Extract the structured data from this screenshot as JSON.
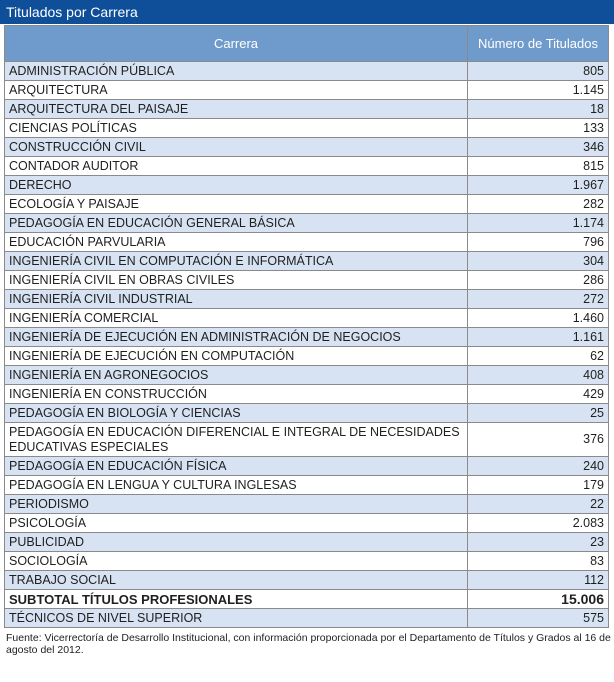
{
  "title": "Titulados por Carrera",
  "header": {
    "career": "Carrera",
    "count": "Número de Titulados"
  },
  "rows": [
    {
      "career": "ADMINISTRACIÓN PÚBLICA",
      "count": "805"
    },
    {
      "career": "ARQUITECTURA",
      "count": "1.145"
    },
    {
      "career": "ARQUITECTURA DEL PAISAJE",
      "count": "18"
    },
    {
      "career": "CIENCIAS POLÍTICAS",
      "count": "133"
    },
    {
      "career": "CONSTRUCCIÓN CIVIL",
      "count": "346"
    },
    {
      "career": "CONTADOR AUDITOR",
      "count": "815"
    },
    {
      "career": "DERECHO",
      "count": "1.967"
    },
    {
      "career": "ECOLOGÍA Y PAISAJE",
      "count": "282"
    },
    {
      "career": "PEDAGOGÍA EN EDUCACIÓN GENERAL BÁSICA",
      "count": "1.174"
    },
    {
      "career": "EDUCACIÓN PARVULARIA",
      "count": "796"
    },
    {
      "career": "INGENIERÍA CIVIL EN COMPUTACIÓN E INFORMÁTICA",
      "count": "304"
    },
    {
      "career": "INGENIERÍA CIVIL EN OBRAS CIVILES",
      "count": "286"
    },
    {
      "career": "INGENIERÍA CIVIL INDUSTRIAL",
      "count": "272"
    },
    {
      "career": "INGENIERÍA COMERCIAL",
      "count": "1.460"
    },
    {
      "career": "INGENIERÍA DE EJECUCIÓN EN ADMINISTRACIÓN DE NEGOCIOS",
      "count": "1.161"
    },
    {
      "career": "INGENIERÍA DE EJECUCIÓN EN COMPUTACIÓN",
      "count": "62"
    },
    {
      "career": "INGENIERÍA EN AGRONEGOCIOS",
      "count": "408"
    },
    {
      "career": "INGENIERÍA EN CONSTRUCCIÓN",
      "count": "429"
    },
    {
      "career": "PEDAGOGÍA EN BIOLOGÍA Y CIENCIAS",
      "count": "25"
    },
    {
      "career": "PEDAGOGÍA EN EDUCACIÓN DIFERENCIAL E INTEGRAL DE NECESIDADES EDUCATIVAS ESPECIALES",
      "count": "376"
    },
    {
      "career": "PEDAGOGÍA EN EDUCACIÓN FÍSICA",
      "count": "240"
    },
    {
      "career": "PEDAGOGÍA EN LENGUA Y CULTURA INGLESAS",
      "count": "179"
    },
    {
      "career": "PERIODISMO",
      "count": "22"
    },
    {
      "career": "PSICOLOGÍA",
      "count": "2.083"
    },
    {
      "career": "PUBLICIDAD",
      "count": "23"
    },
    {
      "career": "SOCIOLOGÍA",
      "count": "83"
    },
    {
      "career": "TRABAJO SOCIAL",
      "count": "112"
    }
  ],
  "subtotal": {
    "label": "SUBTOTAL TÍTULOS PROFESIONALES",
    "count": "15.006"
  },
  "tecnicos": {
    "label": "TÉCNICOS DE NIVEL SUPERIOR",
    "count": "575"
  },
  "footnote": "Fuente: Vicerrectoría de Desarrollo Institucional, con información proporcionada por el Departamento de Títulos y Grados al 16 de agosto del 2012.",
  "colors": {
    "title_bg": "#0f4f9a",
    "header_bg": "#6f9bcc",
    "row_shade": "#d7e3f2"
  }
}
